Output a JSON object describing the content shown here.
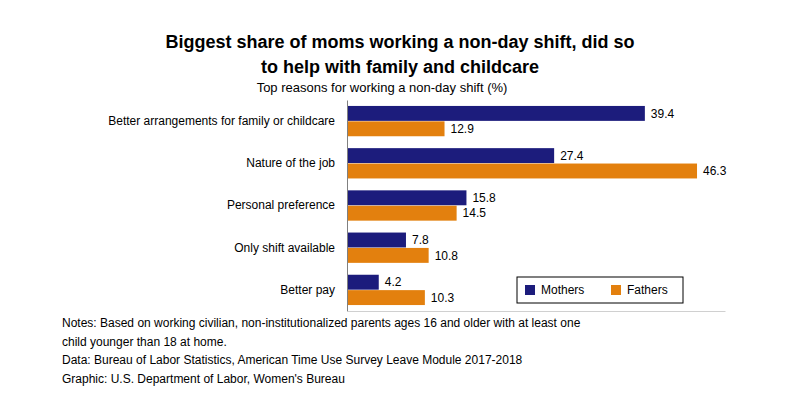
{
  "chart_data": {
    "type": "bar",
    "orientation": "horizontal",
    "title": [
      "Biggest share of moms working a non-day shift, did so",
      "to help with family and childcare"
    ],
    "subtitle": "Top reasons for working a non-day shift (%)",
    "categories": [
      "Better arrangements for family or childcare",
      "Nature of the job",
      "Personal preference",
      "Only shift available",
      "Better pay"
    ],
    "series": [
      {
        "name": "Mothers",
        "color": "#1c1c7c",
        "values": [
          39.4,
          27.4,
          15.8,
          7.8,
          4.2
        ]
      },
      {
        "name": "Fathers",
        "color": "#e3800e",
        "values": [
          12.9,
          46.3,
          14.5,
          10.8,
          10.3
        ]
      }
    ],
    "xlim": [
      0,
      50
    ],
    "xticks": [],
    "tick_labels": "y",
    "grid": false,
    "data_labels": true,
    "legend": "lower right",
    "notes": [
      "Notes: Based on working civilian, non-institutionalized parents ages 16 and older with at least one",
      "child younger than 18 at home.",
      "Data: Bureau of Labor Statistics, American Time Use Survey Leave Module 2017-2018",
      "Graphic: U.S. Department of Labor, Women's Bureau"
    ]
  }
}
